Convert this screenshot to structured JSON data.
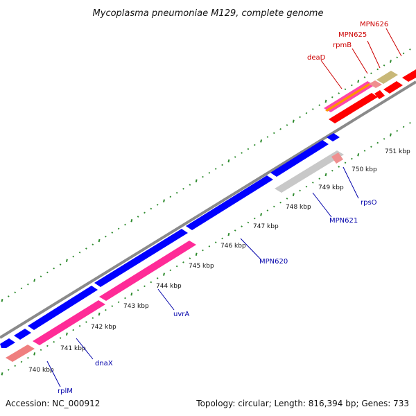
{
  "title": "Mycoplasma pneumoniae M129, complete genome",
  "footer": {
    "accession": "Accession: NC_000912",
    "summary": "Topology: circular; Length: 816,394 bp; Genes: 733"
  },
  "colors": {
    "background": "#ffffff",
    "backbone": "#888888",
    "tick": "#2e8b2e",
    "plus_strand_gene": "#ff0000",
    "minus_strand_gene": "#0000ff",
    "rRNA_operon": "#ff1493",
    "trna": "#ff8888",
    "pseudo": "#c8c8c8",
    "misc": "#c8b878",
    "label_plus": "#cc0000",
    "label_minus": "#0000aa"
  },
  "scale_labels": [
    "740 kbp",
    "741 kbp",
    "742 kbp",
    "743 kbp",
    "744 kbp",
    "745 kbp",
    "746 kbp",
    "747 kbp",
    "748 kbp",
    "749 kbp",
    "750 kbp",
    "751 kbp"
  ],
  "gene_labels_upper": [
    "deaD",
    "rpmB",
    "MPN625",
    "MPN626"
  ],
  "gene_labels_lower": [
    "rplM",
    "dnaX",
    "uvrA",
    "MPN620",
    "MPN621",
    "rpsO"
  ]
}
